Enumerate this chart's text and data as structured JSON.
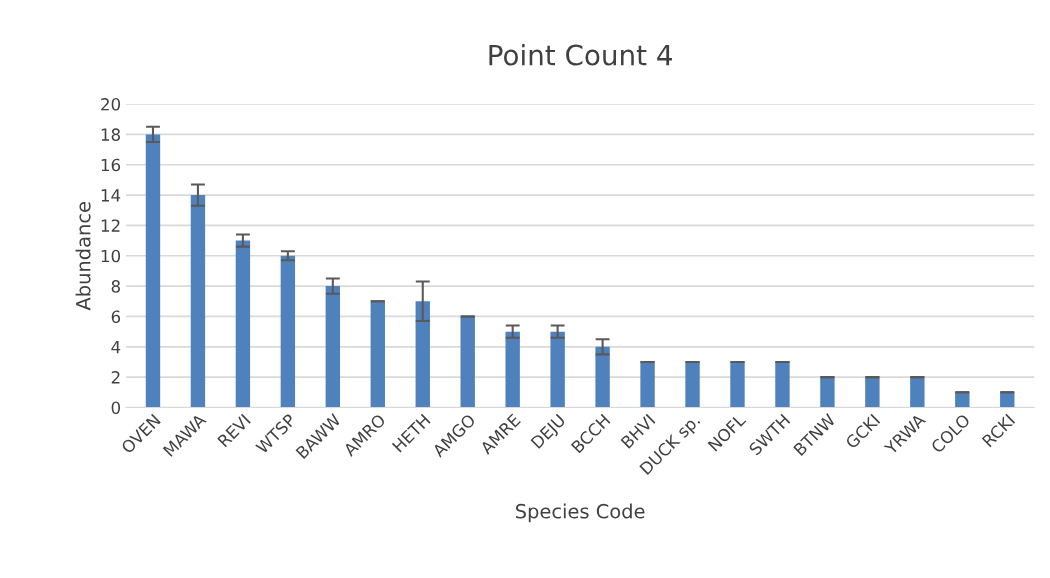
{
  "chart_data": {
    "type": "bar",
    "title": "Point Count 4",
    "xlabel": "Species Code",
    "ylabel": "Abundance",
    "categories": [
      "OVEN",
      "MAWA",
      "REVI",
      "WTSP",
      "BAWW",
      "AMRO",
      "HETH",
      "AMGO",
      "AMRE",
      "DEJU",
      "BCCH",
      "BHVI",
      "DUCK sp.",
      "NOFL",
      "SWTH",
      "BTNW",
      "GCKI",
      "YRWA",
      "COLO",
      "RCKI"
    ],
    "values": [
      18,
      14,
      11,
      10,
      8,
      7,
      7,
      6,
      5,
      5,
      4,
      3,
      3,
      3,
      3,
      2,
      2,
      2,
      1,
      1
    ],
    "errors": [
      0.5,
      0.7,
      0.4,
      0.3,
      0.5,
      0,
      1.3,
      0,
      0.4,
      0.4,
      0.5,
      0,
      0,
      0,
      0,
      0,
      0,
      0,
      0,
      0
    ],
    "color": "#4f81bd",
    "ylim": [
      0,
      20
    ],
    "yticks": [
      0,
      2,
      4,
      6,
      8,
      10,
      12,
      14,
      16,
      18,
      20
    ],
    "grid": "y",
    "legend": false
  }
}
